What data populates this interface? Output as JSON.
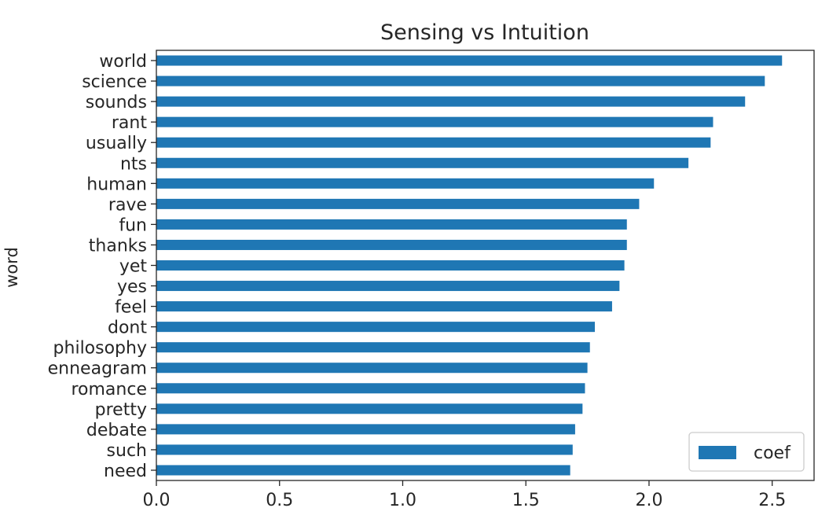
{
  "chart_data": {
    "type": "bar",
    "orientation": "horizontal",
    "title": "Sensing vs Intuition",
    "xlabel": "",
    "ylabel": "word",
    "categories": [
      "world",
      "science",
      "sounds",
      "rant",
      "usually",
      "nts",
      "human",
      "rave",
      "fun",
      "thanks",
      "yet",
      "yes",
      "feel",
      "dont",
      "philosophy",
      "enneagram",
      "romance",
      "pretty",
      "debate",
      "such",
      "need"
    ],
    "series": [
      {
        "name": "coef",
        "color": "#1f77b4",
        "values": [
          2.54,
          2.47,
          2.39,
          2.26,
          2.25,
          2.16,
          2.02,
          1.96,
          1.91,
          1.91,
          1.9,
          1.88,
          1.85,
          1.78,
          1.76,
          1.75,
          1.74,
          1.73,
          1.7,
          1.69,
          1.68
        ]
      }
    ],
    "xlim": [
      0,
      2.67
    ],
    "xticks": [
      "0.0",
      "0.5",
      "1.0",
      "1.5",
      "2.0",
      "2.5"
    ],
    "grid": false,
    "legend": {
      "position": "lower right",
      "entries": [
        "coef"
      ]
    }
  }
}
